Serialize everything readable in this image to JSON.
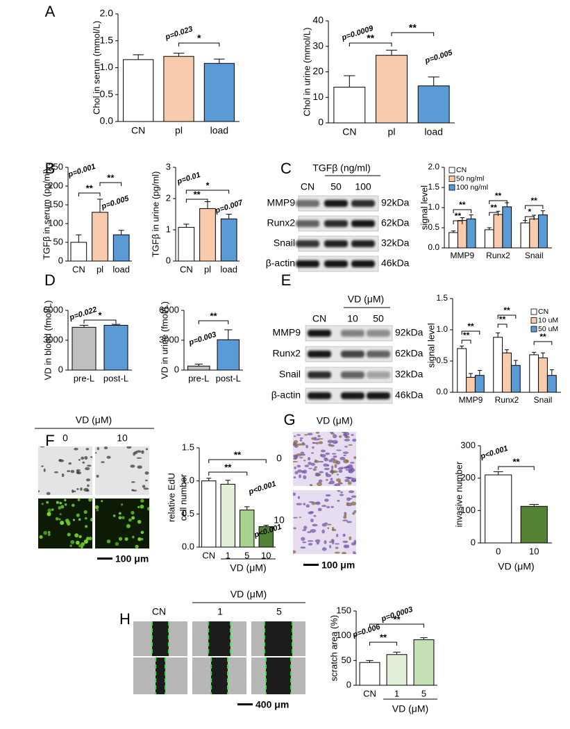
{
  "panel_labels": [
    "A",
    "B",
    "C",
    "D",
    "E",
    "F",
    "G",
    "H"
  ],
  "blots": [
    {
      "treatment": "TGFβ  (ng/ml)",
      "lanes": [
        "CN",
        "50",
        "100"
      ],
      "proteins": [
        "MMP9",
        "Runx2",
        "Snail",
        "β-actin"
      ],
      "sizes": [
        "92kDa",
        "62kDa",
        "32kDa",
        "46kDa"
      ]
    },
    {
      "treatment": "VD (μM)",
      "lanes": [
        "CN",
        "10",
        "50"
      ],
      "proteins": [
        "MMP9",
        "Runx2",
        "Snail",
        "β-actin"
      ],
      "sizes": [
        "92kDa",
        "62kDa",
        "32kDa",
        "46kDa"
      ]
    }
  ],
  "images": {
    "F": {
      "treatment": "VD (μM)",
      "doses": [
        "0",
        "10"
      ],
      "scale_bar": "100 μm"
    },
    "G": {
      "treatment": "VD (μM)",
      "doses": [
        "0",
        "10"
      ],
      "scale_bar": "100 μm"
    },
    "H": {
      "control": "CN",
      "treatment": "VD (μM)",
      "doses": [
        "1",
        "5"
      ],
      "scale_bar": "400 μm"
    }
  },
  "chart_data": [
    {
      "type": "bar",
      "y_label": "Chol in serum (mmol/L)",
      "categories": [
        "CN",
        "pl",
        "load"
      ],
      "values": [
        1.15,
        1.21,
        1.08
      ],
      "errors": [
        0.09,
        0.06,
        0.08
      ],
      "colors": [
        "#ffffff",
        "#f8cbad",
        "#5b9bd5"
      ],
      "ylim": [
        0,
        2
      ],
      "yticks": [
        {
          "value": 0,
          "label": "0.0"
        },
        0.5,
        {
          "value": 1,
          "label": "1.0"
        },
        1.5,
        {
          "value": 2,
          "label": "2.0"
        }
      ],
      "annotations": [
        "p=0.023",
        "*"
      ]
    },
    {
      "type": "bar",
      "y_label": "Chol in urine (mmol/L)",
      "categories": [
        "CN",
        "pl",
        "load"
      ],
      "values": [
        14,
        26.5,
        14.5
      ],
      "errors": [
        4.5,
        2,
        3.5
      ],
      "colors": [
        "#ffffff",
        "#f8cbad",
        "#5b9bd5"
      ],
      "ylim": [
        0,
        40
      ],
      "yticks": [
        0,
        10,
        20,
        30,
        40
      ],
      "annotations": [
        "p=0.0009",
        "**",
        "**",
        "p=0.005"
      ]
    },
    {
      "type": "bar",
      "y_label": "TGFβ  in serum (pg/ml)",
      "categories": [
        "CN",
        "pl",
        "load"
      ],
      "values": [
        50,
        130,
        70
      ],
      "errors": [
        20,
        35,
        12
      ],
      "colors": [
        "#ffffff",
        "#f8cbad",
        "#5b9bd5"
      ],
      "ylim": [
        0,
        250
      ],
      "yticks": [
        0,
        50,
        100,
        150,
        200,
        250
      ],
      "annotations": [
        "p=0.001",
        "**",
        "**",
        "p=0.005"
      ]
    },
    {
      "type": "bar",
      "y_label": "TGFβ  in urine (pg/ml)",
      "categories": [
        "CN",
        "pl",
        "load"
      ],
      "values": [
        1.08,
        1.68,
        1.35
      ],
      "errors": [
        0.1,
        0.22,
        0.15
      ],
      "colors": [
        "#ffffff",
        "#f8cbad",
        "#5b9bd5"
      ],
      "ylim": [
        0,
        3
      ],
      "yticks": [
        0,
        1,
        2,
        3
      ],
      "annotations": [
        "p=0.01",
        "**",
        "*",
        "p=0.007"
      ]
    },
    {
      "type": "grouped_bar",
      "y_label": "signal level",
      "categories": [
        "MMP9",
        "Runx2",
        "Snail"
      ],
      "series": [
        {
          "name": "CN",
          "color": "#ffffff",
          "values": [
            0.38,
            0.45,
            0.62
          ],
          "errors": [
            0.04,
            0.05,
            0.06
          ]
        },
        {
          "name": "50 ng/ml",
          "color": "#f8cbad",
          "values": [
            0.68,
            0.83,
            0.72
          ],
          "errors": [
            0.07,
            0.08,
            0.09
          ]
        },
        {
          "name": "100 ng/ml",
          "color": "#5b9bd5",
          "values": [
            0.72,
            1.02,
            0.82
          ],
          "errors": [
            0.1,
            0.1,
            0.1
          ]
        }
      ],
      "ylim": [
        0,
        2
      ],
      "yticks": [
        {
          "value": 0,
          "label": "0.0"
        },
        0.5,
        {
          "value": 1,
          "label": "1.0"
        },
        1.5,
        {
          "value": 2,
          "label": "2.0"
        }
      ],
      "legend": "top-left",
      "annotations": [
        "**",
        "**",
        "**",
        "**",
        "*",
        "**"
      ]
    },
    {
      "type": "bar",
      "y_label": "VD in blood (fmol/L)",
      "categories": [
        "pre-L",
        "post-L"
      ],
      "values": [
        4300,
        4500
      ],
      "errors": [
        200,
        100
      ],
      "colors": [
        "#bfbfbf",
        "#5b9bd5"
      ],
      "ylim": [
        0,
        6000
      ],
      "yticks": [
        0,
        3000,
        6000
      ],
      "annotations": [
        "p=0.022",
        "*"
      ]
    },
    {
      "type": "bar",
      "y_label": "VD in urine (fmol/L)",
      "categories": [
        "pre-L",
        "post-L"
      ],
      "values": [
        400,
        3050
      ],
      "errors": [
        200,
        1000
      ],
      "colors": [
        "#bfbfbf",
        "#5b9bd5"
      ],
      "ylim": [
        0,
        6000
      ],
      "yticks": [
        0,
        3000,
        6000
      ],
      "annotations": [
        "p=0.003",
        "**"
      ]
    },
    {
      "type": "grouped_bar",
      "y_label": "signal level",
      "categories": [
        "MMP9",
        "Runx2",
        "Snail"
      ],
      "series": [
        {
          "name": "CN",
          "color": "#ffffff",
          "values": [
            0.7,
            0.88,
            0.6
          ],
          "errors": [
            0.04,
            0.07,
            0.04
          ]
        },
        {
          "name": "10 uM",
          "color": "#f8cbad",
          "values": [
            0.24,
            0.63,
            0.55
          ],
          "errors": [
            0.06,
            0.05,
            0.08
          ]
        },
        {
          "name": "50 uM",
          "color": "#5b9bd5",
          "values": [
            0.27,
            0.43,
            0.27
          ],
          "errors": [
            0.08,
            0.08,
            0.09
          ]
        }
      ],
      "ylim": [
        0,
        1.5
      ],
      "yticks": [
        {
          "value": 0,
          "label": "0.0"
        },
        0.5,
        {
          "value": 1,
          "label": "1.0"
        },
        1.5
      ],
      "legend": "top-right",
      "annotations": [
        "**",
        "**",
        "**",
        "**",
        "**"
      ]
    },
    {
      "type": "bar",
      "y_label": [
        "relative EdU",
        "cell number"
      ],
      "x_label": "VD (μM)",
      "categories": [
        "CN",
        "1",
        "5",
        "10"
      ],
      "values": [
        1.0,
        0.95,
        0.56,
        0.31
      ],
      "errors": [
        0.04,
        0.06,
        0.05,
        0.02
      ],
      "colors": [
        "#ffffff",
        "#e2f0d9",
        "#a9d18e",
        "#548235"
      ],
      "ylim": [
        0,
        1.5
      ],
      "yticks": [
        {
          "value": 0,
          "label": "0.0"
        },
        0.5,
        {
          "value": 1,
          "label": "1.0"
        },
        1.5
      ],
      "annotations": [
        "**",
        "**",
        "p<0.001",
        "p<0.001"
      ]
    },
    {
      "type": "bar",
      "y_label": "invasive  number",
      "x_label": "VD (μM)",
      "categories": [
        "0",
        "10"
      ],
      "values": [
        210,
        113
      ],
      "errors": [
        10,
        6
      ],
      "colors": [
        "#ffffff",
        "#548235"
      ],
      "ylim": [
        0,
        300
      ],
      "yticks": [
        0,
        100,
        200,
        300
      ],
      "annotations": [
        "p<0.001",
        "**"
      ]
    },
    {
      "type": "bar",
      "y_label": "scratch area (%)",
      "x_label": "VD (μM)",
      "categories": [
        "CN",
        "1",
        "5"
      ],
      "values": [
        46,
        62,
        92
      ],
      "errors": [
        4,
        5,
        4
      ],
      "colors": [
        "#ffffff",
        "#e2f0d9",
        "#c5e0b4"
      ],
      "ylim": [
        0,
        150
      ],
      "yticks": [
        0,
        50,
        100,
        150
      ],
      "annotations": [
        "p=0.0003",
        "**",
        "p=0.006",
        "**"
      ]
    }
  ]
}
